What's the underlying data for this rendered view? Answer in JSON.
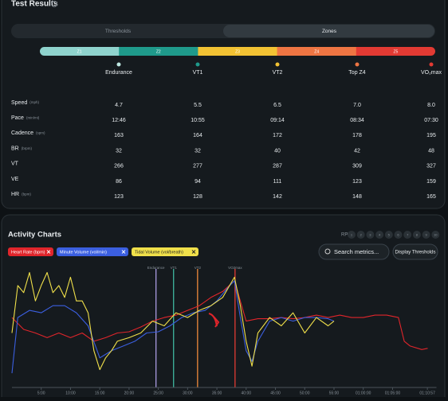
{
  "test_results": {
    "title": "Test Results",
    "tabs": [
      "Thresholds",
      "Zones"
    ],
    "zones": [
      {
        "label": "Z1",
        "color": "#8fd3cd"
      },
      {
        "label": "Z2",
        "color": "#1f9a8b"
      },
      {
        "label": "Z3",
        "color": "#f2c233"
      },
      {
        "label": "Z4",
        "color": "#ee7543"
      },
      {
        "label": "Z5",
        "color": "#e23a33"
      }
    ],
    "markers": [
      {
        "label": "Endurance",
        "color": "#bfe8e3"
      },
      {
        "label": "VT1",
        "color": "#1f9a8b"
      },
      {
        "label": "VT2",
        "color": "#f2c233"
      },
      {
        "label": "Top Z4",
        "color": "#ee7543"
      },
      {
        "label": "VO₂max",
        "color": "#e23a33"
      }
    ],
    "rows": [
      {
        "label": "Speed",
        "unit": "(mph)",
        "values": [
          "4.7",
          "5.5",
          "6.5",
          "7.0",
          "8.0"
        ]
      },
      {
        "label": "Pace",
        "unit": "(min/mi)",
        "values": [
          "12:46",
          "10:55",
          "09:14",
          "08:34",
          "07:30"
        ]
      },
      {
        "label": "Cadence",
        "unit": "(spm)",
        "values": [
          "163",
          "164",
          "172",
          "178",
          "195"
        ]
      },
      {
        "label": "BR",
        "unit": "(brpm)",
        "values": [
          "32",
          "32",
          "40",
          "42",
          "48"
        ]
      },
      {
        "label": "VT",
        "values": [
          "266",
          "277",
          "287",
          "309",
          "327"
        ]
      },
      {
        "label": "VE",
        "values": [
          "86",
          "94",
          "111",
          "123",
          "159"
        ]
      },
      {
        "label": "HR",
        "unit": "(bpm)",
        "values": [
          "123",
          "128",
          "142",
          "148",
          "165"
        ]
      }
    ]
  },
  "activity_charts": {
    "title": "Activity Charts",
    "rpe_label": "RPE",
    "rpe": [
      "1",
      "2",
      "3",
      "4",
      "5",
      "6",
      "7",
      "8",
      "9",
      "10"
    ],
    "search": "Search metrics...",
    "button": "Display Thresholds"
  },
  "chart_data": {
    "type": "line",
    "xlim": [
      0,
      72.5
    ],
    "ylim": [
      0,
      100
    ],
    "xticks": [
      {
        "value": 5,
        "label": "5:00"
      },
      {
        "value": 10,
        "label": "10:00"
      },
      {
        "value": 15,
        "label": "15:00"
      },
      {
        "value": 20,
        "label": "20:00"
      },
      {
        "value": 25,
        "label": "25:00"
      },
      {
        "value": 30,
        "label": "30:00"
      },
      {
        "value": 35,
        "label": "35:00"
      },
      {
        "value": 40,
        "label": "40:00"
      },
      {
        "value": 45,
        "label": "45:00"
      },
      {
        "value": 50,
        "label": "50:00"
      },
      {
        "value": 55,
        "label": "55:00"
      },
      {
        "value": 60,
        "label": "01:00:00"
      },
      {
        "value": 65,
        "label": "01:05:00"
      },
      {
        "value": 70.95,
        "label": "01:10:57"
      }
    ],
    "thresholds": [
      {
        "label": "Endurance",
        "x": 24.6,
        "color": "#a99be0"
      },
      {
        "label": "VT1",
        "x": 27.6,
        "color": "#3fb8a0"
      },
      {
        "label": "VT2",
        "x": 31.7,
        "color": "#f08a3c"
      },
      {
        "label": "VO2max",
        "x": 38.1,
        "color": "#e23a33"
      }
    ],
    "series": [
      {
        "name": "Heart Rate (bpm)",
        "color": "#e0252b",
        "x": [
          0,
          2,
          4,
          6,
          8,
          10,
          12,
          14,
          16,
          18,
          20,
          22,
          24,
          26,
          28,
          30,
          32,
          34,
          36,
          38,
          40,
          42,
          44,
          46,
          48,
          50,
          52,
          54,
          56,
          58,
          60,
          62,
          64,
          66,
          67,
          68,
          70,
          71
        ],
        "values": [
          59,
          49,
          46,
          42,
          46,
          42,
          46,
          39,
          42,
          46,
          47,
          51,
          56,
          59,
          61,
          65,
          69,
          76,
          81,
          90,
          56,
          58,
          58,
          59,
          58,
          59,
          61,
          59,
          61,
          59,
          59,
          61,
          61,
          59,
          39,
          35,
          32,
          33
        ]
      },
      {
        "name": "Minute Volume (vol/min)",
        "color": "#3b5fe0",
        "x": [
          0,
          1,
          3,
          5,
          7,
          9,
          11,
          13,
          15,
          17,
          19,
          21,
          23,
          25,
          27,
          29,
          31,
          33,
          35,
          37,
          38,
          39,
          40,
          41,
          42,
          44,
          46,
          48,
          50,
          52,
          54,
          55
        ],
        "values": [
          12,
          59,
          65,
          63,
          69,
          69,
          63,
          52,
          25,
          31,
          35,
          39,
          46,
          47,
          52,
          59,
          63,
          65,
          73,
          85,
          90,
          59,
          31,
          22,
          39,
          56,
          59,
          56,
          59,
          59,
          58,
          56
        ]
      },
      {
        "name": "Tidal Volume (vol/breath)",
        "color": "#f0e04a",
        "x": [
          0,
          1,
          2,
          3,
          4,
          5,
          6,
          7,
          8,
          9,
          10,
          11,
          12,
          13,
          14,
          15,
          16,
          17,
          18,
          20,
          22,
          24,
          26,
          28,
          30,
          32,
          34,
          36,
          38,
          39,
          40,
          41,
          42,
          44,
          46,
          48,
          50,
          52,
          54,
          55
        ],
        "values": [
          46,
          86,
          80,
          97,
          73,
          86,
          97,
          80,
          86,
          76,
          93,
          73,
          73,
          63,
          31,
          15,
          25,
          31,
          39,
          42,
          46,
          56,
          52,
          63,
          59,
          65,
          69,
          76,
          93,
          69,
          39,
          18,
          46,
          59,
          52,
          63,
          46,
          59,
          52,
          56
        ]
      }
    ]
  }
}
